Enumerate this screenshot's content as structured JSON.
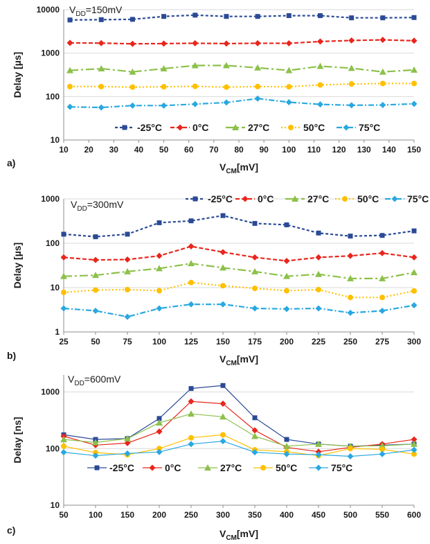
{
  "colors": {
    "-25C": "#2a4a96",
    "0C": "#e8261c",
    "27C": "#8cc04a",
    "50C": "#ffc000",
    "75C": "#29a8e0",
    "grid": "#d9d9d9",
    "axis": "#8c8c8c"
  },
  "chart_data": [
    {
      "type": "line",
      "panel": "a)",
      "annotation": {
        "main": "V",
        "sub": "DD",
        "rest": "=150mV"
      },
      "ylabel": "Delay [µs]",
      "xlabel": {
        "main": "V",
        "sub": "CM",
        "rest": "[mV]"
      },
      "yscale": "log",
      "ylim": [
        10,
        10000
      ],
      "yticks": [
        "10",
        "100",
        "1000",
        "10000"
      ],
      "xlim": [
        10,
        150
      ],
      "xticks": [
        "10",
        "20",
        "30",
        "40",
        "50",
        "60",
        "70",
        "80",
        "90",
        "100",
        "110",
        "120",
        "130",
        "140",
        "150"
      ],
      "x": [
        12.5,
        25,
        37.5,
        50,
        62.5,
        75,
        87.5,
        100,
        112.5,
        125,
        137.5,
        150
      ],
      "legend_position": "bottom",
      "style": "markers-dashed",
      "series": [
        {
          "name": "-25°C",
          "color_key": "-25C",
          "values": [
            5800,
            5900,
            6000,
            7000,
            7500,
            7000,
            7000,
            7300,
            7300,
            6500,
            6500,
            6600
          ]
        },
        {
          "name": "0°C",
          "color_key": "0C",
          "values": [
            1720,
            1700,
            1640,
            1660,
            1690,
            1660,
            1690,
            1680,
            1850,
            1960,
            2020,
            1930
          ]
        },
        {
          "name": "27°C",
          "color_key": "27C",
          "values": [
            400,
            440,
            370,
            440,
            520,
            520,
            460,
            400,
            500,
            450,
            370,
            410
          ]
        },
        {
          "name": "50°C",
          "color_key": "50C",
          "values": [
            170,
            170,
            165,
            168,
            172,
            165,
            170,
            168,
            185,
            195,
            200,
            200
          ]
        },
        {
          "name": "75°C",
          "color_key": "75C",
          "values": [
            58,
            56,
            62,
            62,
            67,
            73,
            90,
            74,
            66,
            63,
            64,
            68
          ]
        }
      ]
    },
    {
      "type": "line",
      "panel": "b)",
      "annotation": {
        "main": "V",
        "sub": "DD",
        "rest": "=300mV"
      },
      "ylabel": "Delay [µs]",
      "xlabel": {
        "main": "V",
        "sub": "CM",
        "rest": "[mV]"
      },
      "yscale": "log",
      "ylim": [
        1,
        1000
      ],
      "yticks": [
        "1",
        "10",
        "100",
        "1000"
      ],
      "xlim": [
        25,
        300
      ],
      "xticks": [
        "25",
        "50",
        "75",
        "100",
        "125",
        "150",
        "175",
        "200",
        "225",
        "250",
        "275",
        "300"
      ],
      "x": [
        25,
        50,
        75,
        100,
        125,
        150,
        175,
        200,
        225,
        250,
        275,
        300
      ],
      "legend_position": "top",
      "style": "markers-dashed",
      "series": [
        {
          "name": "-25°C",
          "color_key": "-25C",
          "values": [
            160,
            140,
            160,
            290,
            320,
            420,
            280,
            260,
            170,
            145,
            150,
            190
          ]
        },
        {
          "name": "0°C",
          "color_key": "0C",
          "values": [
            48,
            42,
            43,
            52,
            85,
            63,
            48,
            40,
            48,
            52,
            60,
            48
          ]
        },
        {
          "name": "27°C",
          "color_key": "27C",
          "values": [
            18,
            19,
            23,
            27,
            35,
            28,
            23,
            18,
            20,
            16,
            16,
            22
          ]
        },
        {
          "name": "50°C",
          "color_key": "50C",
          "values": [
            7.8,
            8.8,
            9,
            8.5,
            13,
            11,
            9.6,
            8.5,
            9,
            6,
            6,
            8.4
          ]
        },
        {
          "name": "75°C",
          "color_key": "75C",
          "values": [
            3.4,
            3,
            2.2,
            3.4,
            4.2,
            4.2,
            3.4,
            3.3,
            3.4,
            2.7,
            3,
            4
          ]
        }
      ]
    },
    {
      "type": "line",
      "panel": "c)",
      "annotation": {
        "main": "V",
        "sub": "DD",
        "rest": "=600mV"
      },
      "ylabel": "Delay [ns]",
      "xlabel": {
        "main": "V",
        "sub": "CM",
        "rest": "[mV]"
      },
      "yscale": "log",
      "ylim": [
        10,
        2000
      ],
      "yticks": [
        "10",
        "100",
        "1000"
      ],
      "xlim": [
        50,
        600
      ],
      "xticks": [
        "50",
        "100",
        "150",
        "200",
        "250",
        "300",
        "350",
        "400",
        "450",
        "500",
        "550",
        "600"
      ],
      "x": [
        50,
        100,
        150,
        200,
        250,
        300,
        350,
        400,
        450,
        500,
        550,
        600
      ],
      "legend_position": "bottom",
      "style": "markers-solid",
      "series": [
        {
          "name": "-25°C",
          "color_key": "-25C",
          "values": [
            175,
            145,
            150,
            340,
            1150,
            1300,
            350,
            145,
            120,
            110,
            115,
            120
          ]
        },
        {
          "name": "0°C",
          "color_key": "0C",
          "values": [
            165,
            115,
            125,
            200,
            680,
            620,
            210,
            105,
            88,
            105,
            120,
            145
          ]
        },
        {
          "name": "27°C",
          "color_key": "27C",
          "values": [
            145,
            128,
            150,
            285,
            410,
            365,
            165,
            110,
            120,
            110,
            112,
            120
          ]
        },
        {
          "name": "50°C",
          "color_key": "50C",
          "values": [
            110,
            85,
            78,
            100,
            155,
            175,
            95,
            88,
            75,
            100,
            97,
            80
          ]
        },
        {
          "name": "75°C",
          "color_key": "75C",
          "values": [
            86,
            75,
            82,
            87,
            120,
            135,
            86,
            80,
            78,
            73,
            80,
            95
          ]
        }
      ]
    }
  ]
}
